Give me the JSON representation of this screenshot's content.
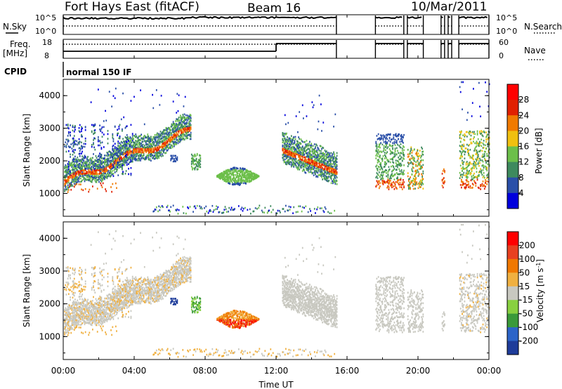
{
  "header": {
    "station": "Fort Hays East (fitACF)",
    "beam": "Beam 16",
    "date": "10/Mar/2011"
  },
  "summary_panels": {
    "nsky_label": "N.Sky",
    "nsearch_label": "N.Search",
    "noise_ticks": [
      "10^5",
      "10^0"
    ],
    "freq_label_line1": "Freq.",
    "freq_label_line2": "[MHz]",
    "freq_ticks": [
      "18",
      "8"
    ],
    "nave_label": "Nave",
    "nave_ticks": [
      "60",
      "0"
    ],
    "cpid_label": "CPID",
    "cpid_value": "normal 150 IF"
  },
  "colors": {
    "power_scale": [
      "#0000dd",
      "#2a4fa8",
      "#3e8a5e",
      "#6cbf4a",
      "#f0c010",
      "#f07a00",
      "#e02000",
      "#ff0000"
    ],
    "velocity_scale": [
      "#1e3c9a",
      "#2c64c8",
      "#3a9a3a",
      "#88d040",
      "#c8c8c0",
      "#f0b040",
      "#f07800",
      "#e84020",
      "#ff0000"
    ]
  },
  "chart_data": [
    {
      "type": "heatmap",
      "name": "power",
      "ylabel": "Slant Range [km]",
      "xlabel": "",
      "yticks": [
        "1000",
        "2000",
        "3000",
        "4000"
      ],
      "ylim": [
        300,
        4500
      ],
      "colorbar_label": "Power [dB]",
      "colorbar_ticks": [
        "4",
        "8",
        "12",
        "16",
        "20",
        "24",
        "28"
      ],
      "colorbar_range": [
        0,
        32
      ]
    },
    {
      "type": "heatmap",
      "name": "velocity",
      "ylabel": "Slant Range [km]",
      "xlabel": "Time UT",
      "xticks": [
        "00:00",
        "04:00",
        "08:00",
        "12:00",
        "16:00",
        "20:00",
        "00:00"
      ],
      "xlim_hours": [
        0,
        24
      ],
      "yticks": [
        "1000",
        "2000",
        "3000",
        "4000"
      ],
      "ylim": [
        300,
        4500
      ],
      "colorbar_label_main": "Velocity [m s",
      "colorbar_label_sup": "-1",
      "colorbar_label_end": "]",
      "colorbar_ticks": [
        "200",
        "100",
        "50",
        "15",
        "-15",
        "-50",
        "-100",
        "-200"
      ]
    }
  ]
}
